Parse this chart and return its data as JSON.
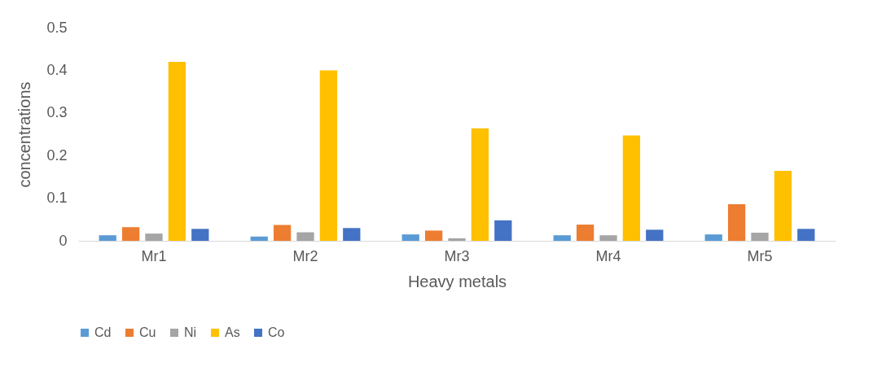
{
  "chart_data": {
    "type": "bar",
    "xlabel": "Heavy metals",
    "ylabel": "concentrations",
    "categories": [
      "Mr1",
      "Mr2",
      "Mr3",
      "Mr4",
      "Mr5"
    ],
    "series": [
      {
        "name": "Cd",
        "color": "#5b9bd5",
        "values": [
          0.013,
          0.01,
          0.015,
          0.013,
          0.015
        ]
      },
      {
        "name": "Cu",
        "color": "#ed7d31",
        "values": [
          0.032,
          0.037,
          0.024,
          0.038,
          0.086
        ]
      },
      {
        "name": "Ni",
        "color": "#a5a5a5",
        "values": [
          0.017,
          0.02,
          0.006,
          0.013,
          0.019
        ]
      },
      {
        "name": "As",
        "color": "#ffc000",
        "values": [
          0.42,
          0.4,
          0.264,
          0.247,
          0.164
        ]
      },
      {
        "name": "Co",
        "color": "#4472c4",
        "values": [
          0.028,
          0.03,
          0.048,
          0.026,
          0.028
        ]
      }
    ],
    "ylim": [
      0,
      0.5
    ],
    "yticks": [
      0,
      0.1,
      0.2,
      0.3,
      0.4,
      0.5
    ],
    "grid": false,
    "legend": "bottom"
  }
}
